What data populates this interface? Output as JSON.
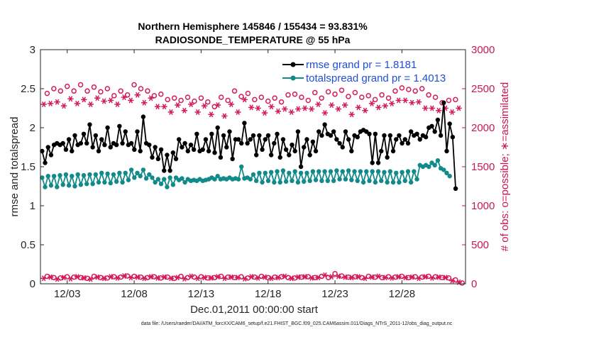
{
  "chart_data": {
    "type": "line",
    "title": "Northern Hemisphere 145846 / 155434 = 93.831%",
    "subtitle": "RADIOSONDE_TEMPERATURE @ 55 hPa",
    "xlabel": "Dec.01,2011 00:00:00 start",
    "ylabel": "rmse and totalspread",
    "y2label": "# of obs: o=possible; ∗=assimilated",
    "footnote": "data file: /Users/raeder/DAI/ATM_forcXX/CAM6_setup/f.e21.FHIST_BGC.f09_025.CAM6assim.011/Diags_NTrS_2011-12/obs_diag_output.nc",
    "xlim": [
      1.0,
      32.75
    ],
    "ylim": [
      0,
      3
    ],
    "y2lim": [
      0,
      3000
    ],
    "x_ticks": [
      3,
      8,
      13,
      18,
      23,
      28
    ],
    "x_tick_labels": [
      "12/03",
      "12/08",
      "12/13",
      "12/18",
      "12/23",
      "12/28"
    ],
    "y_ticks": [
      0,
      0.5,
      1,
      1.5,
      2,
      2.5,
      3
    ],
    "y_tick_labels": [
      "0",
      "0.5",
      "1",
      "1.5",
      "2",
      "2.5",
      "3"
    ],
    "y2_ticks": [
      0,
      500,
      1000,
      1500,
      2000,
      2500,
      3000
    ],
    "y2_tick_labels": [
      "0",
      "500",
      "1000",
      "1500",
      "2000",
      "2500",
      "3000"
    ],
    "legend_position": "top-right",
    "colors": {
      "rmse": "#000000",
      "spread": "#138a8a",
      "obs": "#d41a5a",
      "right_axis": "#c9174f",
      "legend_text": "#1f4fd6"
    },
    "series": [
      {
        "name": "rmse grand pr = 1.8181",
        "axis": "left",
        "marker": "filled-circle",
        "values": [
          1.7,
          1.55,
          1.75,
          1.65,
          1.78,
          1.8,
          1.78,
          1.8,
          1.72,
          1.85,
          1.7,
          1.9,
          1.78,
          1.8,
          1.92,
          1.8,
          2.04,
          1.75,
          1.9,
          1.7,
          1.85,
          1.78,
          2.0,
          1.75,
          1.8,
          1.78,
          2.02,
          1.8,
          1.95,
          1.78,
          1.8,
          1.72,
          1.95,
          1.7,
          2.14,
          1.8,
          1.78,
          1.62,
          1.75,
          1.6,
          1.72,
          1.45,
          1.65,
          1.45,
          1.68,
          1.6,
          1.85,
          1.75,
          1.8,
          1.7,
          1.78,
          1.72,
          1.92,
          1.7,
          1.72,
          1.85,
          1.7,
          1.92,
          1.68,
          2.0,
          1.62,
          1.9,
          1.75,
          1.95,
          1.6,
          1.85,
          1.85,
          1.8,
          2.06,
          1.8,
          1.85,
          1.9,
          1.65,
          1.9,
          1.72,
          1.85,
          1.9,
          1.65,
          1.8,
          1.92,
          1.62,
          1.85,
          1.72,
          1.65,
          1.78,
          1.7,
          1.95,
          1.5,
          1.75,
          1.85,
          1.65,
          1.82,
          1.7,
          1.95,
          1.9,
          2.04,
          1.92,
          1.9,
          1.95,
          1.85,
          1.8,
          1.75,
          1.95,
          1.85,
          1.7,
          1.9,
          1.88,
          1.95,
          1.97,
          1.95,
          1.92,
          1.55,
          1.92,
          1.55,
          1.7,
          1.9,
          1.62,
          1.9,
          1.7,
          1.85,
          1.9,
          1.8,
          1.85,
          1.8,
          1.95,
          1.9,
          1.92,
          1.85,
          1.9,
          1.88,
          2.0,
          2.02,
          1.95,
          2.1,
          1.9,
          2.32,
          1.7,
          2.05,
          1.88,
          1.22
        ]
      },
      {
        "name": "totalspread grand pr = 1.4013",
        "axis": "left",
        "marker": "filled-circle",
        "values": [
          1.36,
          1.24,
          1.38,
          1.26,
          1.38,
          1.24,
          1.39,
          1.27,
          1.4,
          1.26,
          1.38,
          1.25,
          1.4,
          1.27,
          1.39,
          1.28,
          1.4,
          1.28,
          1.4,
          1.3,
          1.42,
          1.3,
          1.41,
          1.29,
          1.4,
          1.31,
          1.42,
          1.3,
          1.42,
          1.33,
          1.46,
          1.36,
          1.42,
          1.38,
          1.46,
          1.35,
          1.4,
          1.36,
          1.3,
          1.34,
          1.28,
          1.34,
          1.24,
          1.36,
          1.27,
          1.36,
          1.33,
          1.35,
          1.3,
          1.34,
          1.32,
          1.33,
          1.32,
          1.34,
          1.32,
          1.33,
          1.34,
          1.36,
          1.34,
          1.38,
          1.34,
          1.35,
          1.34,
          1.36,
          1.34,
          1.35,
          1.34,
          1.5,
          1.35,
          1.36,
          1.34,
          1.4,
          1.32,
          1.42,
          1.3,
          1.42,
          1.32,
          1.43,
          1.3,
          1.44,
          1.3,
          1.45,
          1.31,
          1.42,
          1.32,
          1.44,
          1.3,
          1.42,
          1.31,
          1.42,
          1.32,
          1.44,
          1.33,
          1.44,
          1.32,
          1.44,
          1.32,
          1.44,
          1.32,
          1.45,
          1.34,
          1.44,
          1.34,
          1.45,
          1.33,
          1.44,
          1.32,
          1.44,
          1.3,
          1.44,
          1.32,
          1.44,
          1.3,
          1.44,
          1.32,
          1.43,
          1.3,
          1.44,
          1.3,
          1.42,
          1.3,
          1.43,
          1.32,
          1.44,
          1.3,
          1.44,
          1.34,
          1.52,
          1.5,
          1.52,
          1.5,
          1.55,
          1.52,
          1.58,
          1.48,
          1.46,
          1.42,
          1.38
        ]
      },
      {
        "name": "possible obs (o)",
        "axis": "right",
        "marker": "open-circle",
        "x": [
          1.5,
          2,
          2.5,
          3,
          3.5,
          4,
          4.5,
          5,
          5.5,
          6,
          6.5,
          7,
          7.5,
          8,
          8.5,
          9,
          9.5,
          10,
          10.5,
          11,
          11.5,
          12,
          12.5,
          13,
          13.5,
          14,
          14.5,
          15,
          15.5,
          16,
          16.5,
          17,
          17.5,
          18,
          18.5,
          19,
          19.5,
          20,
          20.5,
          21,
          21.5,
          22,
          22.5,
          23,
          23.5,
          24,
          24.5,
          25,
          25.5,
          26,
          26.5,
          27,
          27.5,
          28,
          28.5,
          29,
          29.5,
          30,
          30.5,
          31,
          31.5,
          32
        ],
        "values": [
          2440,
          2500,
          2470,
          2530,
          2470,
          2550,
          2470,
          2520,
          2460,
          2500,
          2410,
          2470,
          2420,
          2550,
          2500,
          2470,
          2410,
          2430,
          2360,
          2380,
          2350,
          2390,
          2340,
          2380,
          2330,
          2270,
          2390,
          2350,
          2470,
          2400,
          2440,
          2360,
          2390,
          2340,
          2380,
          2330,
          2420,
          2430,
          2390,
          2350,
          2450,
          2380,
          2460,
          2430,
          2480,
          2400,
          2450,
          2390,
          2410,
          2360,
          2420,
          2380,
          2470,
          2510,
          2490,
          2470,
          2500,
          2420,
          2390,
          2320,
          2350,
          2360
        ]
      },
      {
        "name": "assimilated obs (∗)",
        "axis": "right",
        "marker": "asterisk",
        "x": [
          1.25,
          1.75,
          2.25,
          2.75,
          3.25,
          3.75,
          4.25,
          4.75,
          5.25,
          5.75,
          6.25,
          6.75,
          7.25,
          7.75,
          8.25,
          8.75,
          9.25,
          9.75,
          10.25,
          10.75,
          11.25,
          11.75,
          12.25,
          12.75,
          13.25,
          13.75,
          14.25,
          14.75,
          15.25,
          15.75,
          16.25,
          16.75,
          17.25,
          17.75,
          18.25,
          18.75,
          19.25,
          19.75,
          20.25,
          20.75,
          21.25,
          21.75,
          22.25,
          22.75,
          23.25,
          23.75,
          24.25,
          24.75,
          25.25,
          25.75,
          26.25,
          26.75,
          27.25,
          27.75,
          28.25,
          28.75,
          29.25,
          29.75,
          30.25,
          30.75,
          31.25,
          31.75,
          32.25
        ],
        "values": [
          2300,
          2310,
          2330,
          2280,
          2370,
          2310,
          2360,
          2300,
          2380,
          2340,
          2350,
          2300,
          2390,
          2350,
          2420,
          2320,
          2380,
          2270,
          2270,
          2200,
          2290,
          2220,
          2300,
          2200,
          2280,
          2170,
          2290,
          2150,
          2300,
          2200,
          2360,
          2260,
          2250,
          2190,
          2270,
          2210,
          2240,
          2200,
          2240,
          2250,
          2240,
          2300,
          2190,
          2290,
          2240,
          2290,
          2170,
          2260,
          2220,
          2310,
          2260,
          2280,
          2310,
          2350,
          2350,
          2320,
          2330,
          2250,
          2250,
          2220,
          2250,
          2200,
          2250
        ]
      },
      {
        "name": "possible obs near zero (o)",
        "axis": "right",
        "marker": "open-circle",
        "x": [
          1.5,
          2,
          2.5,
          3,
          3.5,
          4,
          4.5,
          5,
          5.5,
          6,
          6.5,
          7,
          7.5,
          8,
          8.5,
          9,
          9.5,
          10,
          10.5,
          11,
          11.5,
          12,
          12.5,
          13,
          13.5,
          14,
          14.5,
          15,
          15.5,
          16,
          16.5,
          17,
          17.5,
          18,
          18.5,
          19,
          19.5,
          20,
          20.5,
          21,
          21.5,
          22,
          22.5,
          23,
          23.5,
          24,
          24.5,
          25,
          25.5,
          26,
          26.5,
          27,
          27.5,
          28,
          28.5,
          29,
          29.5,
          30,
          30.5,
          31,
          31.5,
          32,
          32.5
        ],
        "values": [
          95,
          80,
          75,
          90,
          85,
          80,
          70,
          95,
          80,
          75,
          90,
          85,
          100,
          95,
          85,
          80,
          90,
          75,
          85,
          70,
          95,
          80,
          85,
          90,
          75,
          80,
          95,
          85,
          80,
          90,
          75,
          85,
          95,
          80,
          85,
          90,
          80,
          75,
          85,
          90,
          80,
          95,
          80,
          130,
          100,
          85,
          90,
          80,
          95,
          85,
          80,
          90,
          85,
          95,
          80,
          90,
          85,
          95,
          90,
          80,
          75,
          50,
          10
        ]
      },
      {
        "name": "assimilated obs near zero (∗)",
        "axis": "right",
        "marker": "asterisk",
        "x": [
          1.25,
          1.75,
          2.25,
          2.75,
          3.25,
          3.75,
          4.25,
          4.75,
          5.25,
          5.75,
          6.25,
          6.75,
          7.25,
          7.75,
          8.25,
          8.75,
          9.25,
          9.75,
          10.25,
          10.75,
          11.25,
          11.75,
          12.25,
          12.75,
          13.25,
          13.75,
          14.25,
          14.75,
          15.25,
          15.75,
          16.25,
          16.75,
          17.25,
          17.75,
          18.25,
          18.75,
          19.25,
          19.75,
          20.25,
          20.75,
          21.25,
          21.75,
          22.25,
          22.75,
          23.25,
          23.75,
          24.25,
          24.75,
          25.25,
          25.75,
          26.25,
          26.75,
          27.25,
          27.75,
          28.25,
          28.75,
          29.25,
          29.75,
          30.25,
          30.75,
          31.25,
          31.75,
          32.25
        ],
        "values": [
          70,
          85,
          60,
          80,
          65,
          90,
          75,
          60,
          85,
          70,
          90,
          75,
          100,
          80,
          85,
          70,
          90,
          75,
          85,
          70,
          80,
          65,
          95,
          70,
          80,
          75,
          90,
          70,
          85,
          80,
          65,
          90,
          75,
          85,
          70,
          80,
          95,
          70,
          85,
          90,
          75,
          80,
          110,
          90,
          95,
          85,
          80,
          90,
          70,
          85,
          95,
          80,
          75,
          90,
          80,
          85,
          70,
          90,
          75,
          85,
          80,
          40,
          20
        ]
      }
    ]
  }
}
